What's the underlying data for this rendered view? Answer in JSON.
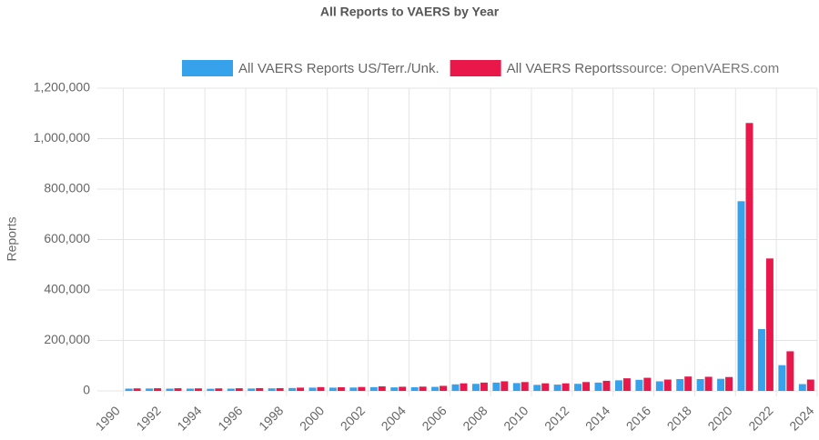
{
  "chart_data": {
    "type": "bar",
    "title": "All Reports to VAERS by Year",
    "annotation": "source: OpenVAERS.com",
    "y_label": "Reports",
    "categories": [
      "1990",
      null,
      "1992",
      null,
      "1994",
      null,
      "1996",
      null,
      "1998",
      null,
      "2000",
      null,
      "2002",
      null,
      "2004",
      null,
      "2006",
      null,
      "2008",
      null,
      "2010",
      null,
      "2012",
      null,
      "2014",
      null,
      "2016",
      null,
      "2018",
      null,
      "2020",
      null,
      "2022",
      null,
      "2024"
    ],
    "series": [
      {
        "name": "All VAERS Reports US/Terr./Unk.",
        "color": "#36a2eb",
        "values": [
          0,
          9000,
          9500,
          9000,
          9000,
          8500,
          9000,
          9500,
          10000,
          11500,
          13000,
          13000,
          13500,
          15000,
          14000,
          14500,
          16000,
          26000,
          28000,
          33000,
          31000,
          24000,
          25000,
          28000,
          33000,
          42000,
          44000,
          38000,
          47000,
          47000,
          48000,
          752000,
          245000,
          102000,
          27000
        ]
      },
      {
        "name": "All VAERS Reports",
        "color": "#e8194a",
        "values": [
          0,
          10000,
          10500,
          10500,
          10000,
          10000,
          10500,
          11000,
          11000,
          13000,
          15000,
          14500,
          15500,
          18000,
          16500,
          17000,
          20000,
          30000,
          33000,
          38000,
          35000,
          30000,
          30000,
          35000,
          40000,
          50000,
          52000,
          45000,
          57000,
          56000,
          55000,
          1062000,
          525000,
          157000,
          45000
        ]
      }
    ],
    "ylim": [
      0,
      1200000
    ],
    "yticks": [
      0,
      {
        "value": 200000,
        "label": "200,000"
      },
      {
        "value": 400000,
        "label": "400,000"
      },
      {
        "value": 600000,
        "label": "600,000"
      },
      {
        "value": 800000,
        "label": "800,000"
      },
      {
        "value": 1000000,
        "label": "1,000,000"
      },
      {
        "value": 1200000,
        "label": "1,200,000"
      }
    ],
    "grid": true,
    "legend": "top"
  }
}
